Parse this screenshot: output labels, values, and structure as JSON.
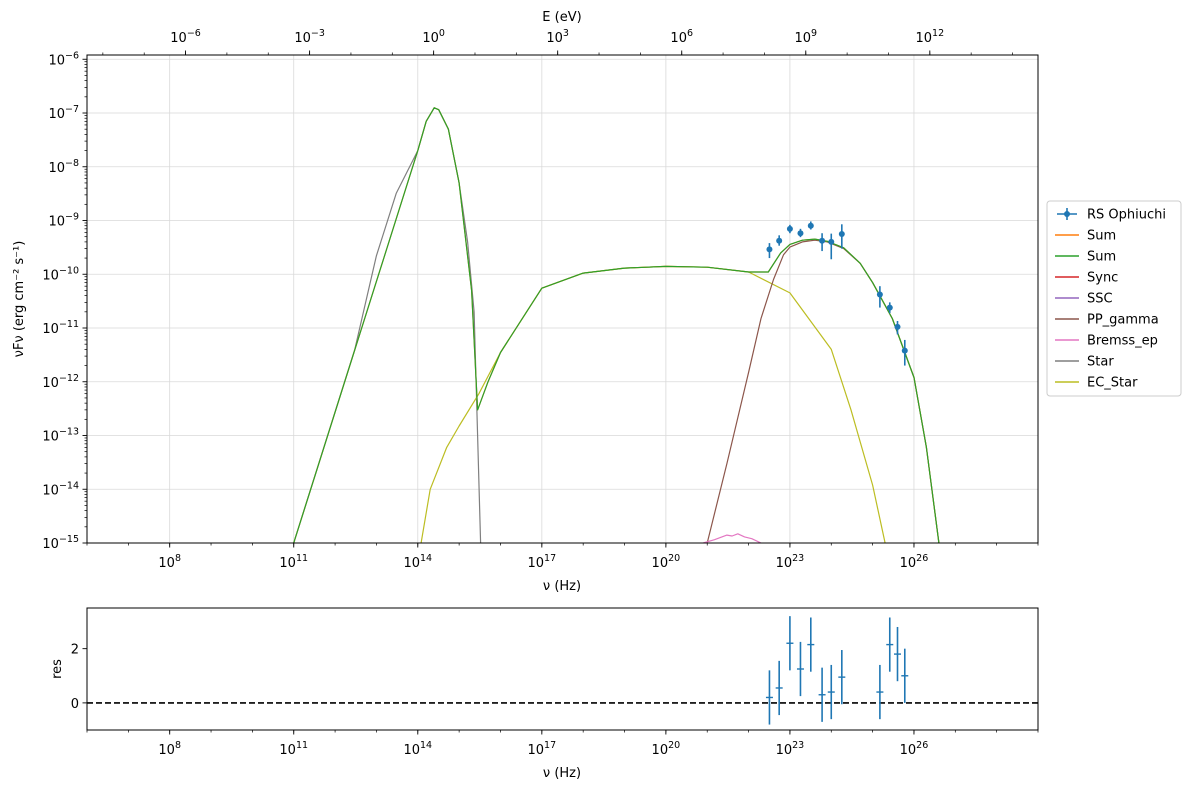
{
  "chart_data": [
    {
      "type": "line",
      "scale": {
        "x": "log",
        "y": "log"
      },
      "xlabel": "ν  (Hz)",
      "ylabel": "νFν  (erg cm⁻² s⁻¹)",
      "top_axis_label": "E (eV)",
      "xlim": [
        1000000.0,
        1e+29
      ],
      "ylim": [
        1e-15,
        1.2e-06
      ],
      "grid": true,
      "legend_position": "right",
      "x_ticks": [
        {
          "value": 100000000.0,
          "base": "10",
          "exp": "8"
        },
        {
          "value": 100000000000.0,
          "base": "10",
          "exp": "11"
        },
        {
          "value": 100000000000000.0,
          "base": "10",
          "exp": "14"
        },
        {
          "value": 1e+17,
          "base": "10",
          "exp": "17"
        },
        {
          "value": 1e+20,
          "base": "10",
          "exp": "20"
        },
        {
          "value": 1e+23,
          "base": "10",
          "exp": "23"
        },
        {
          "value": 1e+26,
          "base": "10",
          "exp": "26"
        }
      ],
      "top_ticks": [
        {
          "value": 1e-06,
          "base": "10",
          "exp": "−6"
        },
        {
          "value": 0.001,
          "base": "10",
          "exp": "−3"
        },
        {
          "value": 1.0,
          "base": "10",
          "exp": "0"
        },
        {
          "value": 1000.0,
          "base": "10",
          "exp": "3"
        },
        {
          "value": 1000000.0,
          "base": "10",
          "exp": "6"
        },
        {
          "value": 1000000000.0,
          "base": "10",
          "exp": "9"
        },
        {
          "value": 1000000000000.0,
          "base": "10",
          "exp": "12"
        }
      ],
      "y_ticks": [
        {
          "value": 1e-15,
          "base": "10",
          "exp": "−15"
        },
        {
          "value": 1e-14,
          "base": "10",
          "exp": "−14"
        },
        {
          "value": 1e-13,
          "base": "10",
          "exp": "−13"
        },
        {
          "value": 1e-12,
          "base": "10",
          "exp": "−12"
        },
        {
          "value": 1e-11,
          "base": "10",
          "exp": "−11"
        },
        {
          "value": 1e-10,
          "base": "10",
          "exp": "−10"
        },
        {
          "value": 1e-09,
          "base": "10",
          "exp": "−9"
        },
        {
          "value": 1e-08,
          "base": "10",
          "exp": "−8"
        },
        {
          "value": 1e-07,
          "base": "10",
          "exp": "−7"
        },
        {
          "value": 1e-06,
          "base": "10",
          "exp": "−6"
        }
      ],
      "data_points": {
        "name": "RS Ophiuchi",
        "color": "#1f77b4",
        "points": [
          {
            "x": 3.2e+22,
            "y": 2.9e-10,
            "ylo": 2e-10,
            "yhi": 3.8e-10
          },
          {
            "x": 5.5e+22,
            "y": 4.2e-10,
            "ylo": 3.4e-10,
            "yhi": 5.3e-10
          },
          {
            "x": 1e+23,
            "y": 7e-10,
            "ylo": 5.8e-10,
            "yhi": 8.3e-10
          },
          {
            "x": 1.8e+23,
            "y": 5.8e-10,
            "ylo": 4.9e-10,
            "yhi": 7e-10
          },
          {
            "x": 3.2e+23,
            "y": 8e-10,
            "ylo": 6.8e-10,
            "yhi": 9.6e-10
          },
          {
            "x": 6e+23,
            "y": 4.2e-10,
            "ylo": 2.7e-10,
            "yhi": 5.8e-10
          },
          {
            "x": 1e+24,
            "y": 4e-10,
            "ylo": 1.9e-10,
            "yhi": 5.7e-10
          },
          {
            "x": 1.8e+24,
            "y": 5.6e-10,
            "ylo": 3e-10,
            "yhi": 8.5e-10
          },
          {
            "x": 1.5e+25,
            "y": 4.2e-11,
            "ylo": 2.4e-11,
            "yhi": 6e-11
          },
          {
            "x": 2.6e+25,
            "y": 2.4e-11,
            "ylo": 1.9e-11,
            "yhi": 3e-11
          },
          {
            "x": 4e+25,
            "y": 1.05e-11,
            "ylo": 7.6e-12,
            "yhi": 1.35e-11
          },
          {
            "x": 6e+25,
            "y": 3.8e-12,
            "ylo": 2e-12,
            "yhi": 6e-12
          }
        ]
      },
      "series": [
        {
          "name": "Sum",
          "color": "#ff7f0e",
          "points": [
            [
              100000000000.0,
              1e-15
            ],
            [
              100000000000000.0,
              2e-08
            ],
            [
              160000000000000.0,
              7e-08
            ],
            [
              250000000000000.0,
              1.25e-07
            ],
            [
              320000000000000.0,
              1.15e-07
            ],
            [
              550000000000000.0,
              5e-08
            ],
            [
              1000000000000000.0,
              5e-09
            ],
            [
              2000000000000000.0,
              5e-11
            ],
            [
              2800000000000000.0,
              3e-13
            ],
            [
              5000000000000000.0,
              1e-12
            ],
            [
              1e+16,
              3.5e-12
            ],
            [
              1e+17,
              5.5e-11
            ],
            [
              1e+18,
              1.05e-10
            ],
            [
              1e+19,
              1.3e-10
            ],
            [
              1e+20,
              1.4e-10
            ],
            [
              1e+21,
              1.35e-10
            ],
            [
              1e+22,
              1.1e-10
            ],
            [
              3e+22,
              1.1e-10
            ],
            [
              6e+22,
              2.5e-10
            ],
            [
              1e+23,
              3.6e-10
            ],
            [
              2e+23,
              4.3e-10
            ],
            [
              4e+23,
              4.5e-10
            ],
            [
              8e+23,
              4.1e-10
            ],
            [
              2e+24,
              3.1e-10
            ],
            [
              5e+24,
              1.6e-10
            ],
            [
              1e+25,
              7e-11
            ],
            [
              3e+25,
              1.5e-11
            ],
            [
              1e+26,
              1.2e-12
            ],
            [
              2e+26,
              6e-14
            ],
            [
              4e+26,
              1e-15
            ]
          ]
        },
        {
          "name": "Sum",
          "color": "#2ca02c",
          "points": [
            [
              100000000000.0,
              1e-15
            ],
            [
              100000000000000.0,
              2e-08
            ],
            [
              160000000000000.0,
              7e-08
            ],
            [
              250000000000000.0,
              1.25e-07
            ],
            [
              320000000000000.0,
              1.15e-07
            ],
            [
              550000000000000.0,
              5e-08
            ],
            [
              1000000000000000.0,
              5e-09
            ],
            [
              2000000000000000.0,
              5e-11
            ],
            [
              2800000000000000.0,
              3e-13
            ],
            [
              5000000000000000.0,
              1e-12
            ],
            [
              1e+16,
              3.5e-12
            ],
            [
              1e+17,
              5.5e-11
            ],
            [
              1e+18,
              1.05e-10
            ],
            [
              1e+19,
              1.3e-10
            ],
            [
              1e+20,
              1.4e-10
            ],
            [
              1e+21,
              1.35e-10
            ],
            [
              1e+22,
              1.1e-10
            ],
            [
              3e+22,
              1.1e-10
            ],
            [
              6e+22,
              2.5e-10
            ],
            [
              1e+23,
              3.6e-10
            ],
            [
              2e+23,
              4.3e-10
            ],
            [
              4e+23,
              4.5e-10
            ],
            [
              8e+23,
              4.1e-10
            ],
            [
              2e+24,
              3.1e-10
            ],
            [
              5e+24,
              1.6e-10
            ],
            [
              1e+25,
              7e-11
            ],
            [
              3e+25,
              1.5e-11
            ],
            [
              1e+26,
              1.2e-12
            ],
            [
              2e+26,
              6e-14
            ],
            [
              4e+26,
              1e-15
            ]
          ]
        },
        {
          "name": "Sync",
          "color": "#d62728",
          "points": []
        },
        {
          "name": "SSC",
          "color": "#9467bd",
          "points": []
        },
        {
          "name": "PP_gamma",
          "color": "#8c564b",
          "points": [
            [
              1e+21,
              1e-15
            ],
            [
              3e+21,
              3e-14
            ],
            [
              1e+22,
              1.5e-12
            ],
            [
              2e+22,
              1.5e-11
            ],
            [
              4e+22,
              8e-11
            ],
            [
              7e+22,
              2.3e-10
            ],
            [
              1e+23,
              3.2e-10
            ],
            [
              2e+23,
              4e-10
            ],
            [
              4e+23,
              4.3e-10
            ],
            [
              8e+23,
              4e-10
            ],
            [
              2e+24,
              3e-10
            ],
            [
              5e+24,
              1.6e-10
            ],
            [
              1e+25,
              7e-11
            ],
            [
              3e+25,
              1.5e-11
            ],
            [
              1e+26,
              1.2e-12
            ],
            [
              2e+26,
              6e-14
            ],
            [
              4e+26,
              1e-15
            ]
          ]
        },
        {
          "name": "Bremss_ep",
          "color": "#e377c2",
          "points": [
            [
              8e+20,
              1e-15
            ],
            [
              1.5e+21,
              1.15e-15
            ],
            [
              3e+21,
              1.4e-15
            ],
            [
              4e+21,
              1.35e-15
            ],
            [
              5.5e+21,
              1.48e-15
            ],
            [
              8e+21,
              1.3e-15
            ],
            [
              1.2e+22,
              1.2e-15
            ],
            [
              2e+22,
              1e-15
            ]
          ]
        },
        {
          "name": "Star",
          "color": "#7f7f7f",
          "points": [
            [
              100000000000.0,
              1e-15
            ],
            [
              3000000000000.0,
              4e-12
            ],
            [
              10000000000000.0,
              2.2e-10
            ],
            [
              30000000000000.0,
              3.2e-09
            ],
            [
              100000000000000.0,
              2e-08
            ],
            [
              160000000000000.0,
              7e-08
            ],
            [
              250000000000000.0,
              1.25e-07
            ],
            [
              320000000000000.0,
              1.15e-07
            ],
            [
              550000000000000.0,
              5e-08
            ],
            [
              1000000000000000.0,
              5e-09
            ],
            [
              1600000000000000.0,
              4e-10
            ],
            [
              2300000000000000.0,
              2e-11
            ],
            [
              2800000000000000.0,
              1e-13
            ],
            [
              3300000000000000.0,
              1e-15
            ]
          ]
        },
        {
          "name": "EC_Star",
          "color": "#bcbd22",
          "points": [
            [
              120000000000000.0,
              1e-15
            ],
            [
              200000000000000.0,
              1e-14
            ],
            [
              500000000000000.0,
              6e-14
            ],
            [
              1000000000000000.0,
              1.5e-13
            ],
            [
              3000000000000000.0,
              6e-13
            ],
            [
              1e+16,
              3.5e-12
            ],
            [
              1e+17,
              5.5e-11
            ],
            [
              1e+18,
              1.05e-10
            ],
            [
              1e+19,
              1.3e-10
            ],
            [
              1e+20,
              1.4e-10
            ],
            [
              1e+21,
              1.35e-10
            ],
            [
              1e+22,
              1.1e-10
            ],
            [
              1e+23,
              4.5e-11
            ],
            [
              1e+24,
              4e-12
            ],
            [
              3e+24,
              3e-13
            ],
            [
              1e+25,
              1.2e-14
            ],
            [
              2e+25,
              1e-15
            ]
          ]
        }
      ]
    },
    {
      "type": "scatter",
      "scale": {
        "x": "log",
        "y": "linear"
      },
      "xlabel": "ν  (Hz)",
      "ylabel": "res",
      "xlim": [
        1000000.0,
        1e+29
      ],
      "ylim": [
        -1,
        3.5
      ],
      "grid": false,
      "y_ticks": [
        {
          "value": 0,
          "label": "0"
        },
        {
          "value": 2,
          "label": "2"
        }
      ],
      "reference_line": {
        "y": 0,
        "style": "dashed",
        "color": "#000000"
      },
      "color": "#1f77b4",
      "points": [
        {
          "x": 3.2e+22,
          "y": 0.2,
          "err": 1.0
        },
        {
          "x": 5.5e+22,
          "y": 0.55,
          "err": 1.0
        },
        {
          "x": 1e+23,
          "y": 2.2,
          "err": 1.0
        },
        {
          "x": 1.8e+23,
          "y": 1.25,
          "err": 1.0
        },
        {
          "x": 3.2e+23,
          "y": 2.15,
          "err": 1.0
        },
        {
          "x": 6e+23,
          "y": 0.3,
          "err": 1.0
        },
        {
          "x": 1e+24,
          "y": 0.4,
          "err": 1.0
        },
        {
          "x": 1.8e+24,
          "y": 0.95,
          "err": 1.0
        },
        {
          "x": 1.5e+25,
          "y": 0.4,
          "err": 1.0
        },
        {
          "x": 2.6e+25,
          "y": 2.15,
          "err": 1.0
        },
        {
          "x": 4e+25,
          "y": 1.8,
          "err": 1.0
        },
        {
          "x": 6e+25,
          "y": 1.0,
          "err": 1.0
        }
      ]
    }
  ]
}
